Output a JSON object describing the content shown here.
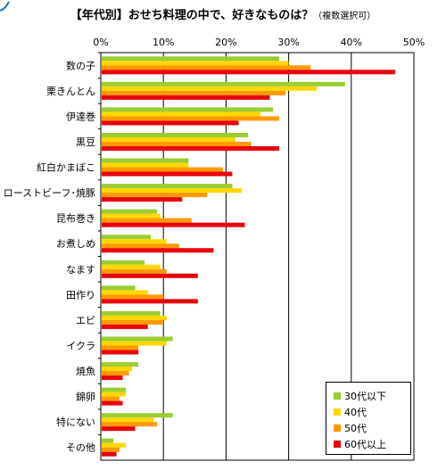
{
  "title": "【年代別】おせち料理の中で、好きなものは？",
  "title_note": "（複数選択可）",
  "colors": {
    "30代以下": "#9ACD32",
    "40代": "#FFD700",
    "50代": "#FF9900",
    "60代以上": "#E8000B"
  },
  "chart_data": {
    "type": "bar",
    "orientation": "horizontal",
    "xlim": [
      0,
      50
    ],
    "tick_labels": [
      "0%",
      "10%",
      "20%",
      "30%",
      "40%",
      "50%"
    ],
    "categories": [
      "数の子",
      "栗きんとん",
      "伊達巻",
      "黒豆",
      "紅白かまぼこ",
      "ローストビーフ･焼豚",
      "昆布巻き",
      "お煮しめ",
      "なます",
      "田作り",
      "エビ",
      "イクラ",
      "焼魚",
      "錦卵",
      "特にない",
      "その他"
    ],
    "series": [
      {
        "name": "30代以下",
        "color": "#9ACD32",
        "values": [
          28.5,
          39,
          27.5,
          23.5,
          14,
          21,
          9,
          8,
          7,
          5.5,
          9.5,
          11.5,
          6,
          4,
          11.5,
          2
        ]
      },
      {
        "name": "40代",
        "color": "#FFD700",
        "values": [
          30,
          34.5,
          25.5,
          21.5,
          14,
          22.5,
          9.5,
          10.5,
          9.5,
          7.5,
          10.5,
          10.5,
          5,
          4,
          8.5,
          4
        ]
      },
      {
        "name": "50代",
        "color": "#FF9900",
        "values": [
          33.5,
          29.5,
          28.5,
          24,
          19.5,
          17,
          14.5,
          12.5,
          10.5,
          10,
          10,
          6,
          4.5,
          3,
          9,
          3
        ]
      },
      {
        "name": "60代以上",
        "color": "#E8000B",
        "values": [
          47,
          27,
          22,
          28.5,
          21,
          13,
          23,
          18,
          15.5,
          15.5,
          7.5,
          6,
          3.5,
          3.5,
          5.5,
          2.5
        ]
      }
    ],
    "grid": true,
    "legend_position": "bottom-right"
  }
}
